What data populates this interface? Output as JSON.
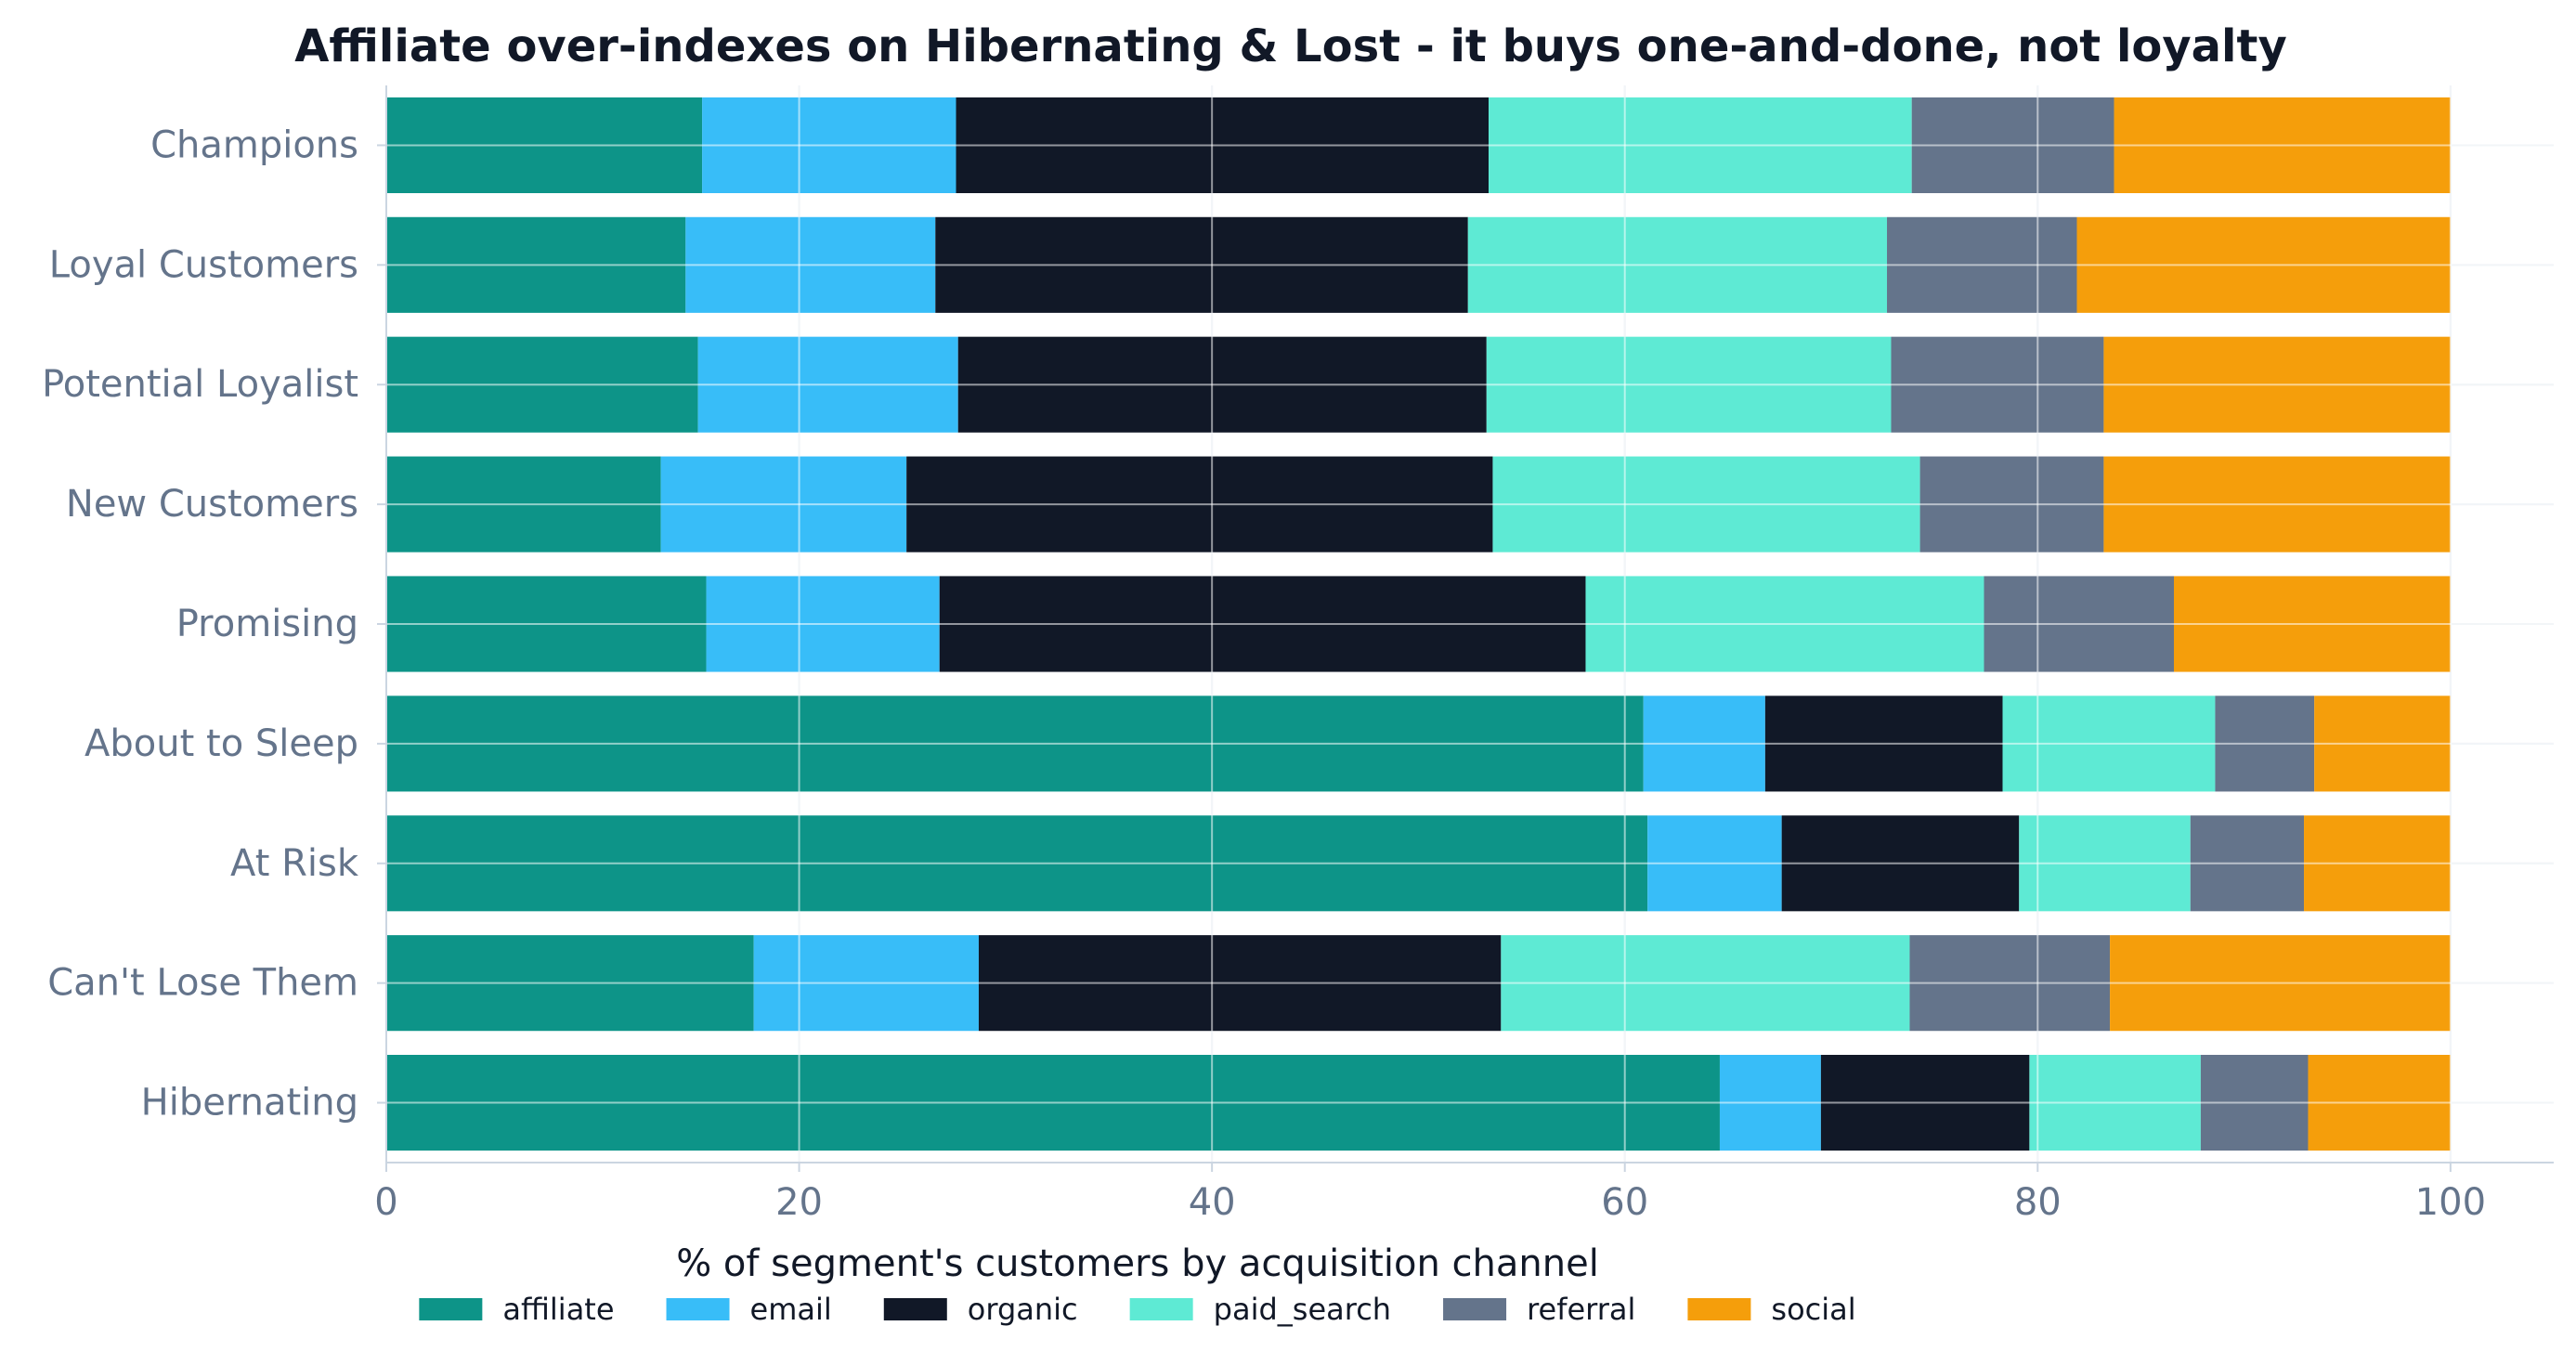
{
  "chart_data": {
    "type": "bar",
    "orientation": "horizontal",
    "stacked": true,
    "title": "Affiliate over-indexes on Hibernating & Lost - it buys one-and-done, not loyalty",
    "xlabel": "% of segment's customers by acquisition channel",
    "ylabel": "",
    "xlim": [
      0,
      105
    ],
    "xticks": [
      0,
      20,
      40,
      60,
      80,
      100
    ],
    "grid": true,
    "legend_position": "bottom",
    "categories": [
      "Champions",
      "Loyal Customers",
      "Potential Loyalist",
      "New Customers",
      "Promising",
      "About to Sleep",
      "At Risk",
      "Can't Lose Them",
      "Hibernating"
    ],
    "series": [
      {
        "name": "affiliate",
        "color": "#0d9488",
        "values": [
          15.3,
          14.5,
          15.1,
          13.3,
          15.5,
          60.9,
          61.1,
          17.8,
          64.6
        ]
      },
      {
        "name": "email",
        "color": "#38bdf8",
        "values": [
          12.3,
          12.1,
          12.6,
          11.9,
          11.3,
          5.9,
          6.5,
          10.9,
          4.9
        ]
      },
      {
        "name": "organic",
        "color": "#111827",
        "values": [
          25.8,
          25.8,
          25.6,
          28.4,
          31.3,
          11.5,
          11.5,
          25.3,
          10.1
        ]
      },
      {
        "name": "paid_search",
        "color": "#5eead4",
        "values": [
          20.5,
          20.3,
          19.6,
          20.7,
          19.3,
          10.3,
          8.3,
          19.8,
          8.3
        ]
      },
      {
        "name": "referral",
        "color": "#64748b",
        "values": [
          9.8,
          9.2,
          10.3,
          8.9,
          9.2,
          4.8,
          5.5,
          9.7,
          5.2
        ]
      },
      {
        "name": "social",
        "color": "#f59e0b",
        "values": [
          16.3,
          18.1,
          16.8,
          16.8,
          13.4,
          6.6,
          7.1,
          16.5,
          6.9
        ]
      }
    ]
  },
  "colors": {
    "text_dark": "#111827",
    "tick": "#64748b",
    "grid": "#e2e8f0",
    "axis": "#cbd5e1"
  }
}
